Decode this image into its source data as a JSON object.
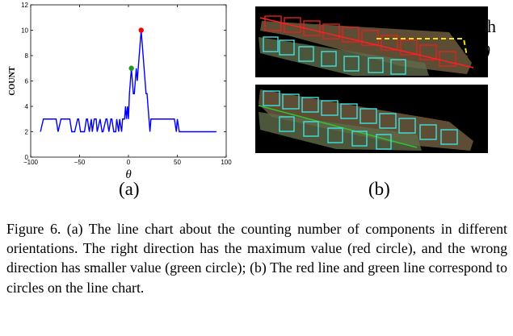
{
  "chart_data": {
    "type": "line",
    "title": "",
    "xlabel": "θ",
    "ylabel": "COUNT",
    "xlim": [
      -100,
      100
    ],
    "ylim": [
      0,
      12
    ],
    "xticks": [
      -100,
      -50,
      0,
      50,
      100
    ],
    "yticks": [
      0,
      2,
      4,
      6,
      8,
      10,
      12
    ],
    "xtick_labels": [
      "−100",
      "−50",
      "0",
      "50",
      "100"
    ],
    "ytick_labels": [
      "0",
      "2",
      "4",
      "6",
      "8",
      "10",
      "12"
    ],
    "grid": false,
    "series": [
      {
        "color": "#0000ff",
        "x": [
          -90,
          -87,
          -74,
          -72,
          -69,
          -60,
          -58,
          -55,
          -52,
          -51,
          -49,
          -45,
          -43,
          -42,
          -40,
          -38,
          -37,
          -35,
          -33,
          -32,
          -29,
          -27,
          -26,
          -23,
          -22,
          -20,
          -18,
          -17,
          -15,
          -13,
          -12,
          -10,
          -9,
          -7,
          -6,
          -4,
          -3,
          -2,
          -1,
          0,
          1,
          2,
          3,
          4,
          5,
          6,
          7,
          8,
          9,
          10,
          11,
          12,
          13,
          14,
          15,
          16,
          17,
          18,
          19,
          20,
          21,
          22,
          23,
          24,
          25,
          26,
          28,
          29,
          30,
          32,
          33,
          36,
          37,
          39,
          41,
          42,
          45,
          46,
          47,
          49,
          50,
          52,
          55,
          60,
          70,
          80,
          90
        ],
        "y": [
          2,
          3,
          3,
          2,
          3,
          3,
          2,
          2,
          3,
          3,
          2,
          2,
          3,
          3,
          2,
          3,
          2,
          3,
          3,
          2,
          3,
          2,
          2,
          3,
          3,
          2,
          3,
          3,
          2,
          2,
          3,
          2,
          3,
          2,
          3,
          3,
          4,
          3,
          4,
          3,
          5,
          6,
          7,
          6,
          5,
          5,
          6,
          7,
          6,
          7,
          8,
          9,
          10,
          9,
          8,
          7,
          6,
          5,
          5,
          4,
          3,
          2,
          3,
          3,
          3,
          3,
          3,
          3,
          3,
          3,
          3,
          3,
          3,
          3,
          3,
          3,
          3,
          3,
          3,
          2,
          3,
          2,
          2,
          2,
          2,
          2,
          2
        ]
      }
    ],
    "markers": [
      {
        "x": 13,
        "y": 10,
        "color": "#ff0000"
      },
      {
        "x": 3,
        "y": 7,
        "color": "#1a9a1a"
      }
    ]
  },
  "labels": {
    "sub_a": "(a)",
    "sub_b": "(b)",
    "annot_h": "h",
    "annot_theta": "θ"
  },
  "caption": "Figure 6. (a) The line chart about the counting number of components in different orientations. The right direction has the maximum value (red circle), and the wrong direction has smaller value (green circle); (b) The red line and green line correspond to circles on the line chart."
}
